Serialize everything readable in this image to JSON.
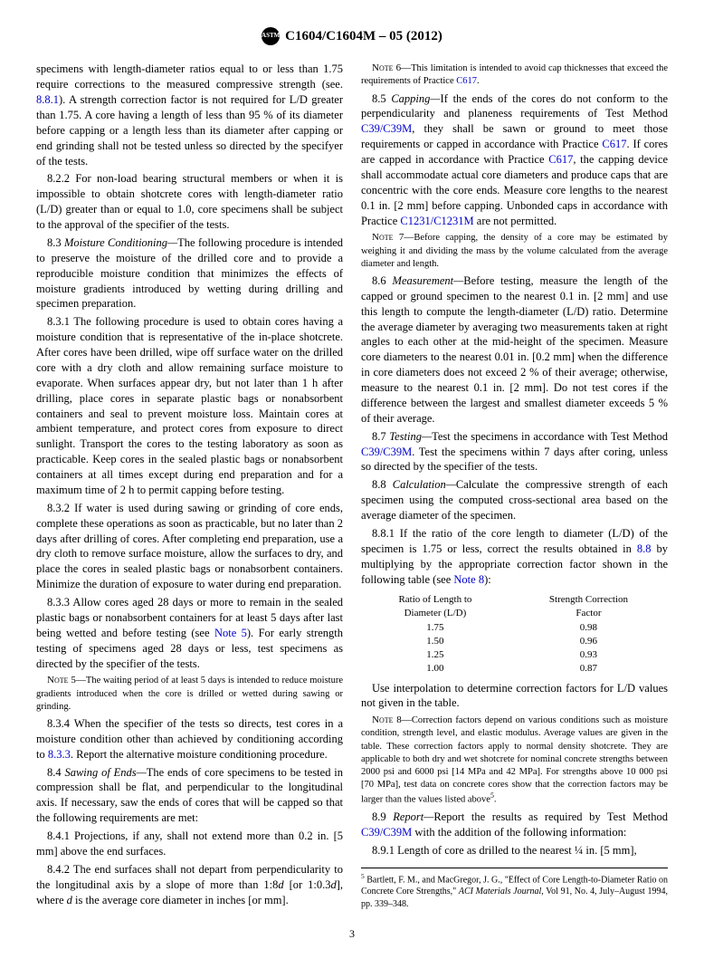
{
  "header": {
    "docnum": "C1604/C1604M – 05 (2012)"
  },
  "col": {
    "p1": "specimens with length-diameter ratios equal to or less than 1.75 require corrections to the measured compressive strength (see. ",
    "p1_ref": "8.8.1",
    "p1b": "). A strength correction factor is not required for L/D greater than 1.75. A core having a length of less than 95 % of its diameter before capping or a length less than its diameter after capping or end grinding shall not be tested unless so directed by the specifyer of the tests.",
    "p2": "8.2.2 For non-load bearing structural members or when it is impossible to obtain shotcrete cores with length-diameter ratio (L/D) greater than or equal to 1.0, core specimens shall be subject to the approval of the specifier of the tests.",
    "p3_lead": "8.3 ",
    "p3_title": "Moisture Conditioning—",
    "p3": "The following procedure is intended to preserve the moisture of the drilled core and to provide a reproducible moisture condition that minimizes the effects of moisture gradients introduced by wetting during drilling and specimen preparation.",
    "p4": "8.3.1 The following procedure is used to obtain cores having a moisture condition that is representative of the in-place shotcrete. After cores have been drilled, wipe off surface water on the drilled core with a dry cloth and allow remaining surface moisture to evaporate. When surfaces appear dry, but not later than 1 h after drilling, place cores in separate plastic bags or nonabsorbent containers and seal to prevent moisture loss. Maintain cores at ambient temperature, and protect cores from exposure to direct sunlight. Transport the cores to the testing laboratory as soon as practicable. Keep cores in the sealed plastic bags or nonabsorbent containers at all times except during end preparation and for a maximum time of 2 h to permit capping before testing.",
    "p5": "8.3.2 If water is used during sawing or grinding of core ends, complete these operations as soon as practicable, but no later than 2 days after drilling of cores. After completing end preparation, use a dry cloth to remove surface moisture, allow the surfaces to dry, and place the cores in sealed plastic bags or nonabsorbent containers. Minimize the duration of exposure to water during end preparation.",
    "p6a": "8.3.3 Allow cores aged 28 days or more to remain in the sealed plastic bags or nonabsorbent containers for at least 5 days after last being wetted and before testing (see ",
    "p6_ref": "Note 5",
    "p6b": "). For early strength testing of specimens aged 28 days or less, test specimens as directed by the specifier of the tests.",
    "note5_lead": "Note 5—",
    "note5": "The waiting period of at least 5 days is intended to reduce moisture gradients introduced when the core is drilled or wetted during sawing or grinding.",
    "p7a": "8.3.4 When the specifier of the tests so directs, test cores in a moisture condition other than achieved by conditioning according to ",
    "p7_ref": "8.3.3",
    "p7b": ". Report the alternative moisture conditioning procedure.",
    "p8_lead": "8.4 ",
    "p8_title": "Sawing of Ends—",
    "p8": "The ends of core specimens to be tested in compression shall be flat, and perpendicular to the longitudinal axis. If necessary, saw the ends of cores that will be capped so that the following requirements are met:",
    "p9": "8.4.1 Projections, if any, shall not extend more than 0.2 in. [5 mm] above the end surfaces.",
    "p10a": "8.4.2 The end surfaces shall not depart from perpendicularity to the longitudinal axis by a slope of more than 1:8",
    "p10b": " [or 1:0.3",
    "p10c": "], where ",
    "p10d": " is the average core diameter in inches [or mm].",
    "note6_lead": "Note 6—",
    "note6a": "This limitation is intended to avoid cap thicknesses that exceed the requirements of Practice ",
    "note6_ref": "C617",
    "p11_lead": "8.5 ",
    "p11_title": "Capping—",
    "p11a": "If the ends of the cores do not conform to the perpendicularity and planeness requirements of Test Method ",
    "p11_ref1": "C39/C39M",
    "p11b": ", they shall be sawn or ground to meet those requirements or capped in accordance with Practice ",
    "p11_ref2": "C617",
    "p11c": ". If cores are capped in accordance with Practice ",
    "p11_ref3": "C617",
    "p11d": ", the capping device shall accommodate actual core diameters and produce caps that are concentric with the core ends. Measure core lengths to the nearest 0.1 in. [2 mm] before capping. Unbonded caps in accordance with Practice ",
    "p11_ref4": "C1231/C1231M",
    "p11e": " are not permitted.",
    "note7_lead": "Note 7—",
    "note7": "Before capping, the density of a core may be estimated by weighing it and dividing the mass by the volume calculated from the average diameter and length.",
    "p12_lead": "8.6 ",
    "p12_title": "Measurement—",
    "p12": "Before testing, measure the length of the capped or ground specimen to the nearest 0.1 in. [2 mm] and use this length to compute the length-diameter (L/D) ratio. Determine the average diameter by averaging two measurements taken at right angles to each other at the mid-height of the specimen. Measure core diameters to the nearest 0.01 in. [0.2 mm] when the difference in core diameters does not exceed 2 % of their average; otherwise, measure to the nearest 0.1 in. [2 mm]. Do not test cores if the difference between the largest and smallest diameter exceeds 5 % of their average.",
    "p13_lead": "8.7 ",
    "p13_title": "Testing—",
    "p13a": "Test the specimens in accordance with Test Method ",
    "p13_ref": "C39/C39M",
    "p13b": ". Test the specimens within 7 days after coring, unless so directed by the specifier of the tests.",
    "p14_lead": "8.8 ",
    "p14_title": "Calculation—",
    "p14": "Calculate the compressive strength of each specimen using the computed cross-sectional area based on the average diameter of the specimen.",
    "p15a": "8.8.1 If the ratio of the core length to diameter (L/D) of the specimen is 1.75 or less, correct the results obtained in ",
    "p15_ref1": "8.8",
    "p15b": " by multiplying by the appropriate correction factor shown in the following table (see ",
    "p15_ref2": "Note 8",
    "p15c": "):",
    "table": {
      "h1a": "Ratio of Length to",
      "h1b": "Diameter (L/D)",
      "h2a": "Strength Correction",
      "h2b": "Factor",
      "rows": [
        [
          "1.75",
          "0.98"
        ],
        [
          "1.50",
          "0.96"
        ],
        [
          "1.25",
          "0.93"
        ],
        [
          "1.00",
          "0.87"
        ]
      ]
    },
    "p16": "Use interpolation to determine correction factors for L/D values not given in the table.",
    "note8_lead": "Note 8—",
    "note8": "Correction factors depend on various conditions such as moisture condition, strength level, and elastic modulus. Average values are given in the table. These correction factors apply to normal density shotcrete. They are applicable to both dry and wet shotcrete for nominal concrete strengths between 2000 psi and 6000 psi [14 MPa and 42 MPa]. For strengths above 10 000 psi [70 MPa], test data on concrete cores show that the correction factors may be larger than the values listed above",
    "p17_lead": "8.9 ",
    "p17_title": "Report—",
    "p17a": "Report the results as required by Test Method ",
    "p17_ref": "C39/C39M",
    "p17b": " with the addition of the following information:",
    "p18": "8.9.1 Length of core as drilled to the nearest ¼ in. [5 mm],",
    "footnote_mark": "5",
    "footnote": " Bartlett, F. M., and MacGregor, J. G., \"Effect of Core Length-to-Diameter Ratio on Concrete Core Strengths,\" ",
    "footnote_i": "ACI Materials Journal",
    "footnote2": ", Vol 91, No. 4, July–August 1994, pp. 339–348."
  },
  "pagenum": "3"
}
